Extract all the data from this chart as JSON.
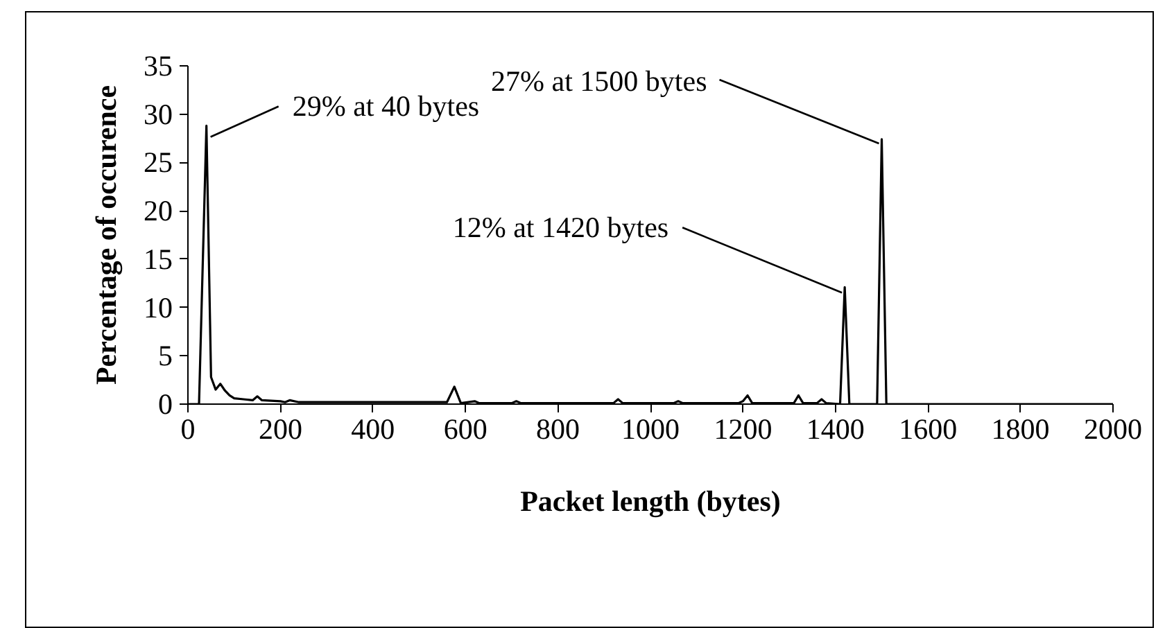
{
  "chart_data": {
    "type": "line",
    "xlabel": "Packet length (bytes)",
    "ylabel": "Percentage of occurence",
    "x": [
      0,
      24,
      40,
      50,
      60,
      70,
      80,
      90,
      100,
      120,
      140,
      150,
      160,
      200,
      210,
      220,
      240,
      560,
      576,
      590,
      620,
      630,
      700,
      710,
      720,
      920,
      930,
      940,
      1050,
      1060,
      1070,
      1190,
      1200,
      1210,
      1220,
      1310,
      1320,
      1330,
      1360,
      1370,
      1380,
      1410,
      1420,
      1430,
      1490,
      1500,
      1510,
      2000
    ],
    "series": [
      {
        "color": "#000000",
        "values": [
          0,
          0,
          28.8,
          2.8,
          1.5,
          2.1,
          1.4,
          0.9,
          0.6,
          0.5,
          0.4,
          0.8,
          0.4,
          0.3,
          0.2,
          0.4,
          0.2,
          0.2,
          1.8,
          0.1,
          0.3,
          0.1,
          0.1,
          0.3,
          0.1,
          0.1,
          0.5,
          0.1,
          0.1,
          0.3,
          0.1,
          0.1,
          0.3,
          0.9,
          0.1,
          0.1,
          0.9,
          0.1,
          0.1,
          0.5,
          0.1,
          0,
          12.1,
          0,
          0,
          27.4,
          0,
          0
        ]
      }
    ],
    "xlim": [
      0,
      2000
    ],
    "ylim": [
      0,
      35
    ],
    "xticks": [
      0,
      200,
      400,
      600,
      800,
      1000,
      1200,
      1400,
      1600,
      1800,
      2000
    ],
    "yticks": [
      0,
      5,
      10,
      15,
      20,
      25,
      30,
      35
    ],
    "grid": false,
    "marker": "none",
    "line_style": "solid",
    "annotations": [
      {
        "text": "29% at 40 bytes",
        "x": 40,
        "y": 28.8
      },
      {
        "text": "27% at 1500 bytes",
        "x": 1500,
        "y": 27.4
      },
      {
        "text": "12% at 1420 bytes",
        "x": 1420,
        "y": 12.1
      }
    ]
  }
}
